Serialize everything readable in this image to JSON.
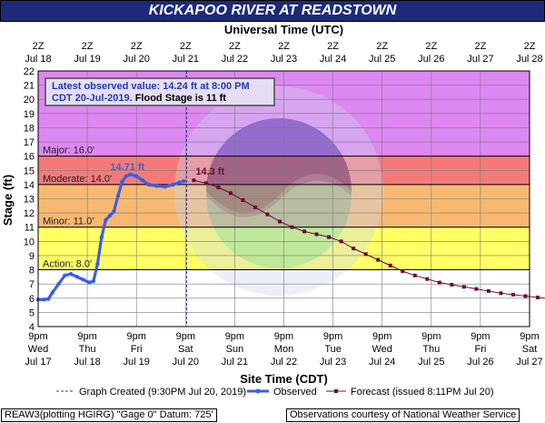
{
  "title": "KICKAPOO RIVER AT READSTOWN",
  "top_axis_title": "Universal Time (UTC)",
  "info": {
    "line1": "Latest observed value: 14.24 ft at 8:00 PM",
    "line2a": "CDT 20-Jul-2019.",
    "line2b": " Flood Stage is 11 ft"
  },
  "legend": {
    "created": "Graph Created (9:30PM Jul 20, 2019)",
    "observed": "Observed",
    "forecast": "Forecast (issued 8:11PM Jul 20)"
  },
  "footer": {
    "left": "REAW3(plotting HGIRG) \"Gage 0\" Datum: 725'",
    "right": "Observations courtesy of National Weather Service"
  },
  "colors": {
    "major": "#dd88f2",
    "moderate": "#f47a7a",
    "minor": "#f7b971",
    "action": "#ffff66",
    "normal": "#ffffff",
    "observed": "#3b5fe0",
    "forecast": "#6a0a3c",
    "grid": "#7a7a7a"
  },
  "chart_data": {
    "type": "line",
    "title": "KICKAPOO RIVER AT READSTOWN",
    "xlabel": "Site Time (CDT)",
    "ylabel": "Stage (ft)",
    "x2label": "Universal Time (UTC)",
    "ylim": [
      4,
      22
    ],
    "xlim": [
      "2019-07-17 21:00",
      "2019-07-27 21:00"
    ],
    "yticks": [
      4,
      5,
      6,
      7,
      8,
      9,
      10,
      11,
      12,
      13,
      14,
      15,
      16,
      17,
      18,
      19,
      20,
      21,
      22
    ],
    "bottom_ticks": [
      {
        "l1": "9pm",
        "l2": "Wed",
        "l3": "Jul 17"
      },
      {
        "l1": "9pm",
        "l2": "Thu",
        "l3": "Jul 18"
      },
      {
        "l1": "9pm",
        "l2": "Fri",
        "l3": "Jul 19"
      },
      {
        "l1": "9pm",
        "l2": "Sat",
        "l3": "Jul 20"
      },
      {
        "l1": "9pm",
        "l2": "Sun",
        "l3": "Jul 21"
      },
      {
        "l1": "9pm",
        "l2": "Mon",
        "l3": "Jul 22"
      },
      {
        "l1": "9pm",
        "l2": "Tue",
        "l3": "Jul 23"
      },
      {
        "l1": "9pm",
        "l2": "Wed",
        "l3": "Jul 24"
      },
      {
        "l1": "9pm",
        "l2": "Thu",
        "l3": "Jul 25"
      },
      {
        "l1": "9pm",
        "l2": "Fri",
        "l3": "Jul 26"
      },
      {
        "l1": "9pm",
        "l2": "Sat",
        "l3": "Jul 27"
      }
    ],
    "top_ticks": [
      {
        "l1": "2Z",
        "l2": "Jul 18"
      },
      {
        "l1": "2Z",
        "l2": "Jul 19"
      },
      {
        "l1": "2Z",
        "l2": "Jul 20"
      },
      {
        "l1": "2Z",
        "l2": "Jul 21"
      },
      {
        "l1": "2Z",
        "l2": "Jul 22"
      },
      {
        "l1": "2Z",
        "l2": "Jul 23"
      },
      {
        "l1": "2Z",
        "l2": "Jul 24"
      },
      {
        "l1": "2Z",
        "l2": "Jul 25"
      },
      {
        "l1": "2Z",
        "l2": "Jul 26"
      },
      {
        "l1": "2Z",
        "l2": "Jul 27"
      },
      {
        "l1": "2Z",
        "l2": "Jul 28"
      }
    ],
    "flood_categories": [
      {
        "name": "Major",
        "label": "Major: 16.0'",
        "from": 16,
        "to": 22
      },
      {
        "name": "Moderate",
        "label": "Moderate: 14.0'",
        "from": 14,
        "to": 16
      },
      {
        "name": "Minor",
        "label": "Minor: 11.0'",
        "from": 11,
        "to": 14
      },
      {
        "name": "Action",
        "label": "Action: 8.0'",
        "from": 8,
        "to": 11
      }
    ],
    "annotations": [
      {
        "text": "14.71 ft",
        "series": "Observed"
      },
      {
        "text": "14.3 ft",
        "series": "Forecast"
      }
    ],
    "graph_created": "2019-07-20 21:30",
    "series": [
      {
        "name": "Observed",
        "points": [
          [
            "2019-07-17 21:00",
            5.9
          ],
          [
            "2019-07-18 00:00",
            5.9
          ],
          [
            "2019-07-18 02:00",
            5.95
          ],
          [
            "2019-07-18 04:00",
            6.4
          ],
          [
            "2019-07-18 07:00",
            7.0
          ],
          [
            "2019-07-18 10:00",
            7.6
          ],
          [
            "2019-07-18 13:00",
            7.7
          ],
          [
            "2019-07-18 16:00",
            7.5
          ],
          [
            "2019-07-18 19:00",
            7.3
          ],
          [
            "2019-07-18 22:00",
            7.1
          ],
          [
            "2019-07-19 00:00",
            7.2
          ],
          [
            "2019-07-19 02:00",
            8.4
          ],
          [
            "2019-07-19 04:00",
            10.3
          ],
          [
            "2019-07-19 06:00",
            11.5
          ],
          [
            "2019-07-19 08:00",
            11.8
          ],
          [
            "2019-07-19 10:00",
            12.1
          ],
          [
            "2019-07-19 12:00",
            13.2
          ],
          [
            "2019-07-19 14:00",
            14.2
          ],
          [
            "2019-07-19 16:00",
            14.6
          ],
          [
            "2019-07-19 18:00",
            14.71
          ],
          [
            "2019-07-19 21:00",
            14.6
          ],
          [
            "2019-07-20 00:00",
            14.3
          ],
          [
            "2019-07-20 03:00",
            14.0
          ],
          [
            "2019-07-20 07:00",
            13.9
          ],
          [
            "2019-07-20 11:00",
            13.85
          ],
          [
            "2019-07-20 15:00",
            14.0
          ],
          [
            "2019-07-20 18:00",
            14.15
          ],
          [
            "2019-07-20 20:00",
            14.24
          ]
        ]
      },
      {
        "name": "Forecast",
        "points": [
          [
            "2019-07-21 01:00",
            14.3
          ],
          [
            "2019-07-21 07:00",
            14.1
          ],
          [
            "2019-07-21 13:00",
            13.8
          ],
          [
            "2019-07-21 19:00",
            13.4
          ],
          [
            "2019-07-22 01:00",
            12.9
          ],
          [
            "2019-07-22 07:00",
            12.4
          ],
          [
            "2019-07-22 13:00",
            11.9
          ],
          [
            "2019-07-22 19:00",
            11.4
          ],
          [
            "2019-07-23 01:00",
            11.0
          ],
          [
            "2019-07-23 07:00",
            10.7
          ],
          [
            "2019-07-23 13:00",
            10.5
          ],
          [
            "2019-07-23 19:00",
            10.3
          ],
          [
            "2019-07-24 01:00",
            10.0
          ],
          [
            "2019-07-24 07:00",
            9.5
          ],
          [
            "2019-07-24 13:00",
            9.1
          ],
          [
            "2019-07-24 19:00",
            8.7
          ],
          [
            "2019-07-25 01:00",
            8.3
          ],
          [
            "2019-07-25 07:00",
            7.9
          ],
          [
            "2019-07-25 13:00",
            7.6
          ],
          [
            "2019-07-25 19:00",
            7.35
          ],
          [
            "2019-07-26 01:00",
            7.1
          ],
          [
            "2019-07-26 07:00",
            6.95
          ],
          [
            "2019-07-26 13:00",
            6.8
          ],
          [
            "2019-07-26 19:00",
            6.65
          ],
          [
            "2019-07-27 01:00",
            6.5
          ],
          [
            "2019-07-27 07:00",
            6.35
          ],
          [
            "2019-07-27 13:00",
            6.25
          ],
          [
            "2019-07-27 19:00",
            6.15
          ],
          [
            "2019-07-28 01:00",
            6.05
          ],
          [
            "2019-07-28 07:00",
            5.95
          ],
          [
            "2019-07-28 13:00",
            5.85
          ],
          [
            "2019-07-28 17:00",
            5.75
          ],
          [
            "2019-07-28 21:00",
            5.7
          ]
        ]
      }
    ]
  }
}
